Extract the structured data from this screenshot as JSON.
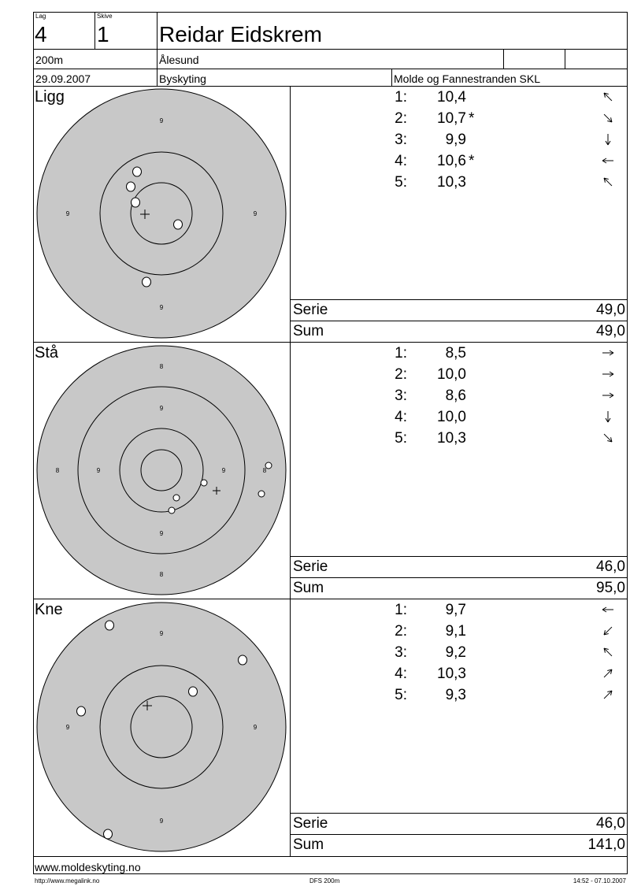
{
  "header": {
    "lag_label": "Lag",
    "lag_value": "4",
    "skive_label": "Skive",
    "skive_value": "1",
    "shooter_name": "Reidar Eidskrem",
    "distance": "200m",
    "club": "Ålesund",
    "date": "29.09.2007",
    "event": "Byskyting",
    "organizer": "Molde og Fannestranden SKL"
  },
  "sections": [
    {
      "label": "Ligg",
      "target_labels": [
        "9",
        "9",
        "9",
        "9"
      ],
      "shots": [
        {
          "index": "1:",
          "value": "10,4",
          "star": "",
          "arrow": "up-left"
        },
        {
          "index": "2:",
          "value": "10,7",
          "star": "*",
          "arrow": "down-right"
        },
        {
          "index": "3:",
          "value": "9,9",
          "star": "",
          "arrow": "down"
        },
        {
          "index": "4:",
          "value": "10,6",
          "star": "*",
          "arrow": "left"
        },
        {
          "index": "5:",
          "value": "10,3",
          "star": "",
          "arrow": "up-left"
        }
      ],
      "serie_label": "Serie",
      "serie_value": "49,0",
      "sum_label": "Sum",
      "sum_value": "49,0"
    },
    {
      "label": "Stå",
      "target_labels": [
        "8",
        "9",
        "9",
        "9",
        "9",
        "8",
        "8",
        "9",
        "8"
      ],
      "shots": [
        {
          "index": "1:",
          "value": "8,5",
          "star": "",
          "arrow": "right"
        },
        {
          "index": "2:",
          "value": "10,0",
          "star": "",
          "arrow": "right"
        },
        {
          "index": "3:",
          "value": "8,6",
          "star": "",
          "arrow": "right"
        },
        {
          "index": "4:",
          "value": "10,0",
          "star": "",
          "arrow": "down"
        },
        {
          "index": "5:",
          "value": "10,3",
          "star": "",
          "arrow": "down-right"
        }
      ],
      "serie_label": "Serie",
      "serie_value": "46,0",
      "sum_label": "Sum",
      "sum_value": "95,0"
    },
    {
      "label": "Kne",
      "target_labels": [
        "9",
        "9",
        "9",
        "9"
      ],
      "shots": [
        {
          "index": "1:",
          "value": "9,7",
          "star": "",
          "arrow": "left"
        },
        {
          "index": "2:",
          "value": "9,1",
          "star": "",
          "arrow": "down-left"
        },
        {
          "index": "3:",
          "value": "9,2",
          "star": "",
          "arrow": "up-left"
        },
        {
          "index": "4:",
          "value": "10,3",
          "star": "",
          "arrow": "up-right"
        },
        {
          "index": "5:",
          "value": "9,3",
          "star": "",
          "arrow": "up-right"
        }
      ],
      "serie_label": "Serie",
      "serie_value": "46,0",
      "sum_label": "Sum",
      "sum_value": "141,0"
    }
  ],
  "footer": {
    "website": "www.moldeskyting.no",
    "vendor_url": "http://www.megalink.no",
    "program": "DFS 200m",
    "printed": "14:52 - 07.10.2007"
  }
}
